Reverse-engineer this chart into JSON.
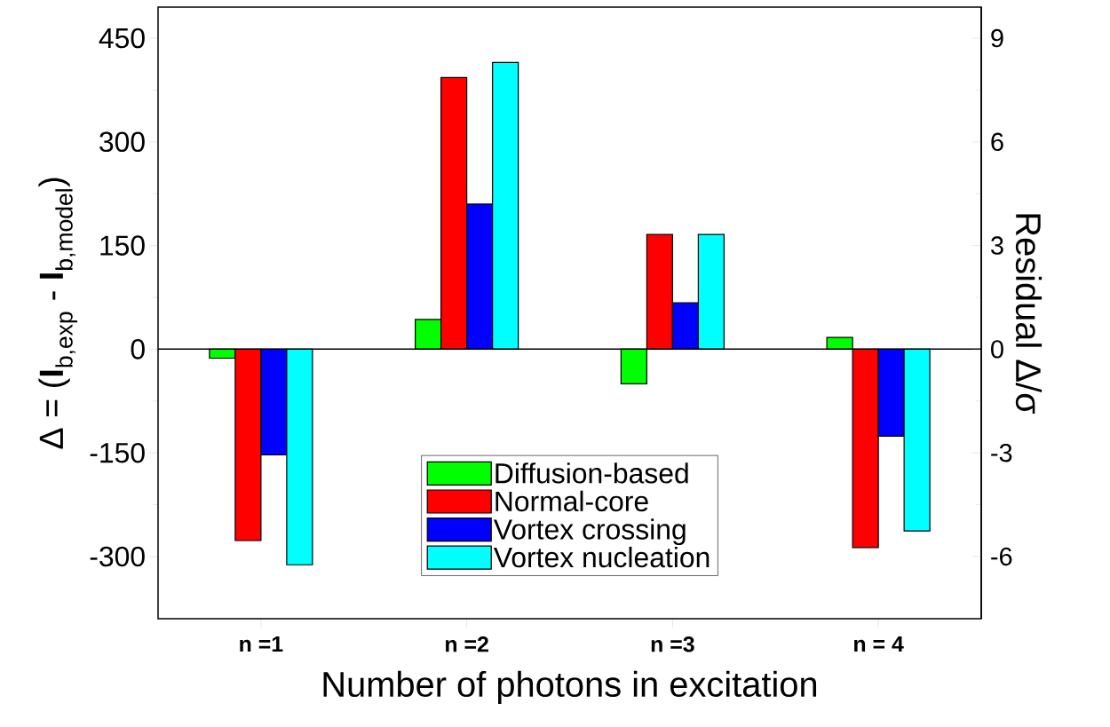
{
  "chart_data": {
    "type": "bar",
    "xlabel": "Number of photons in excitation",
    "ylabel": "Δ = (**I**$_{b,exp}$ - **I**$_{b,model}$)",
    "y2label": "Residual Δ/σ",
    "categories": [
      "n =1",
      "n =2",
      "n =3",
      "n = 4"
    ],
    "series": [
      {
        "name": "Diffusion-based",
        "color": "#00ff00",
        "values": [
          -13,
          43,
          -50,
          17
        ]
      },
      {
        "name": "Normal-core",
        "color": "#ff0000",
        "values": [
          -277,
          393,
          166,
          -287
        ]
      },
      {
        "name": "Vortex crossing",
        "color": "#0000ff",
        "values": [
          -153,
          210,
          67,
          -126
        ]
      },
      {
        "name": "Vortex nucleation",
        "color": "#00ffff",
        "values": [
          -312,
          415,
          166,
          -263
        ]
      }
    ],
    "ylim": [
      -390,
      495
    ],
    "yticks": [
      -300,
      -150,
      0,
      150,
      300,
      450
    ],
    "y2lim": [
      -7.8,
      9.9
    ],
    "y2ticks": [
      -6,
      -3,
      0,
      3,
      6,
      9
    ],
    "legend": "bottom",
    "ref_lines": [
      {
        "axis": "y",
        "value": 0
      }
    ]
  }
}
